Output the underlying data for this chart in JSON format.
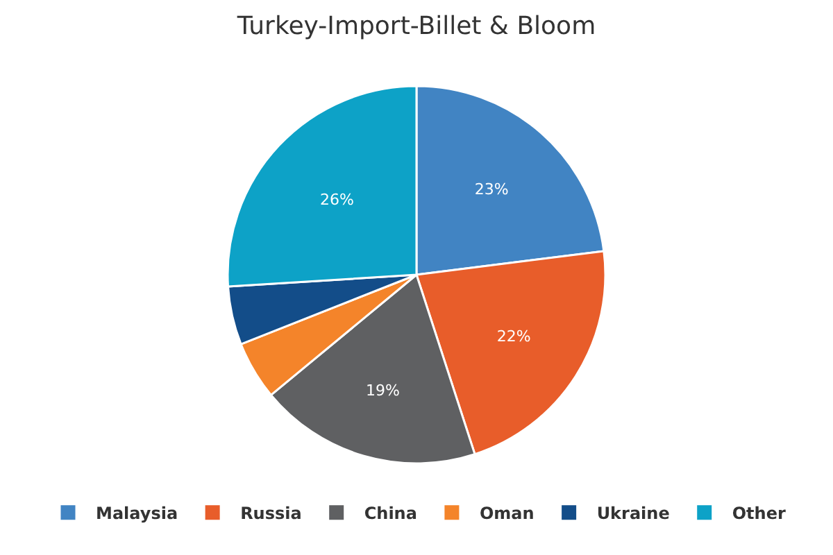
{
  "chart_data": {
    "type": "pie",
    "title": "Turkey-Import-Billet & Bloom",
    "categories": [
      "Malaysia",
      "Russia",
      "China",
      "Oman",
      "Ukraine",
      "Other"
    ],
    "values": [
      23,
      22,
      19,
      5,
      5,
      26
    ],
    "colors": [
      "#4184c3",
      "#e85d2a",
      "#5f6062",
      "#f4842a",
      "#134d89",
      "#0da2c7"
    ],
    "value_labels": [
      "23%",
      "22%",
      "19%",
      null,
      null,
      "26%"
    ],
    "legend": "bottom"
  }
}
